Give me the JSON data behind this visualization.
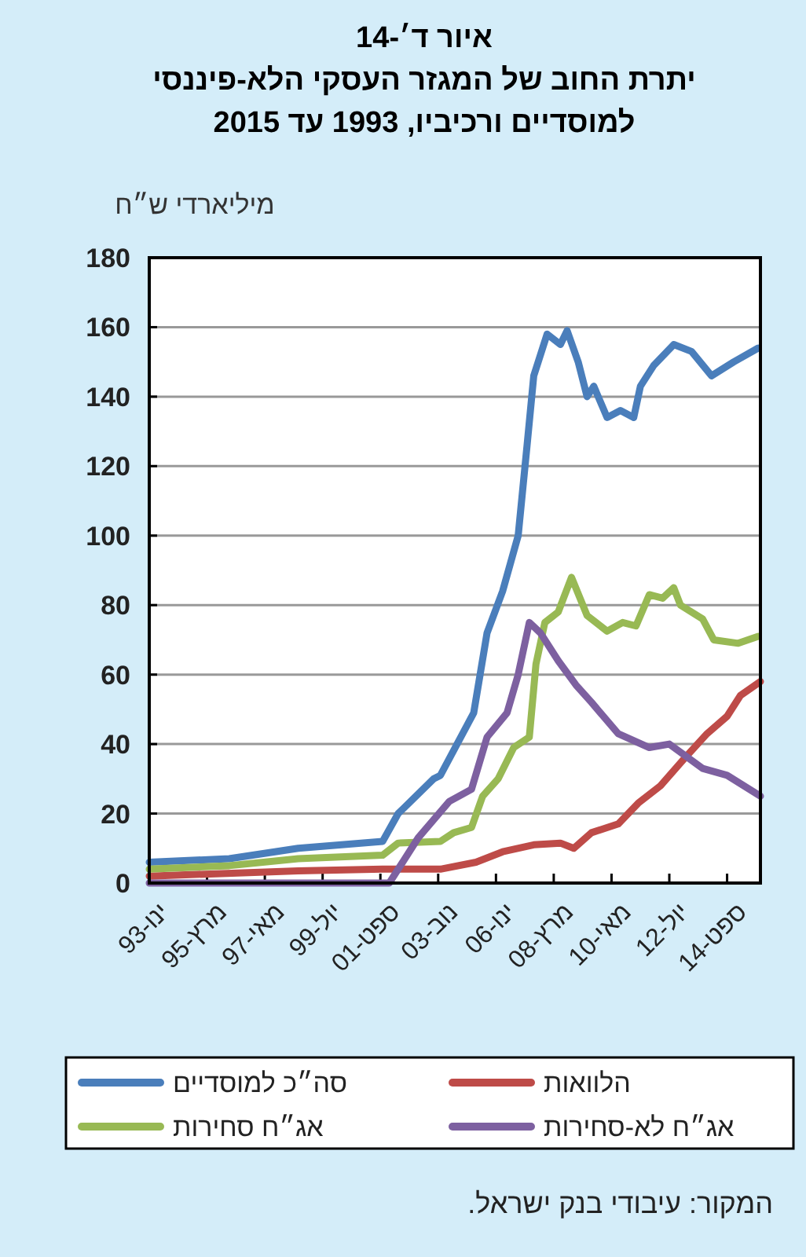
{
  "chart_data": {
    "type": "line",
    "title": "איור ד׳-14",
    "subtitle": "יתרת החוב של המגזר העסקי הלא-פיננסי\nלמוסדיים ורכיביו, 1993 עד 2015",
    "ylabel": "מיליארדי ש״ח",
    "annotations": [
      "המקור: עיבודי בנק ישראל."
    ],
    "xlim": [
      "1993-01",
      "2015-12"
    ],
    "xticks": [
      {
        "value": "1993-01",
        "label": "ינו-93"
      },
      {
        "value": "1995-03",
        "label": "מרץ-95"
      },
      {
        "value": "1997-05",
        "label": "מאי-97"
      },
      {
        "value": "1999-07",
        "label": "יול-99"
      },
      {
        "value": "2001-09",
        "label": "ספט-01"
      },
      {
        "value": "2003-11",
        "label": "נוב-03"
      },
      {
        "value": "2006-01",
        "label": "ינו-06"
      },
      {
        "value": "2008-03",
        "label": "מרץ-08"
      },
      {
        "value": "2010-05",
        "label": "מאי-10"
      },
      {
        "value": "2012-07",
        "label": "יול-12"
      },
      {
        "value": "2014-09",
        "label": "ספט-14"
      }
    ],
    "ylim": [
      0,
      180
    ],
    "yticks": [
      0,
      20,
      40,
      60,
      80,
      100,
      120,
      140,
      160,
      180
    ],
    "grid": "y",
    "legend": "bottom",
    "marker": "none",
    "line_style": "solid",
    "series": [
      {
        "name": "סה״כ למוסדיים",
        "color": "#4a7ebb",
        "x": [
          "1993-01",
          "1996-01",
          "1998-08",
          "2001-10",
          "2002-05",
          "2003-09",
          "2003-12",
          "2005-03",
          "2005-09",
          "2006-04",
          "2006-11",
          "2007-03",
          "2007-06",
          "2007-12",
          "2008-06",
          "2008-09",
          "2009-02",
          "2009-06",
          "2009-09",
          "2010-03",
          "2010-09",
          "2011-03",
          "2011-06",
          "2011-12",
          "2012-09",
          "2013-05",
          "2014-02",
          "2014-12",
          "2015-11"
        ],
        "values": [
          6,
          7,
          10,
          12,
          20,
          30,
          31,
          49,
          72,
          84,
          100,
          126,
          146,
          158,
          155,
          159,
          150,
          140,
          143,
          134,
          136,
          134,
          143,
          149,
          155,
          153,
          146,
          150,
          154
        ]
      },
      {
        "name": "הלוואות",
        "color": "#be4b48",
        "x": [
          "1993-01",
          "1998-08",
          "2001-10",
          "2003-12",
          "2005-04",
          "2006-04",
          "2007-06",
          "2008-06",
          "2008-12",
          "2009-08",
          "2010-08",
          "2011-05",
          "2012-03",
          "2013-02",
          "2013-12",
          "2014-09",
          "2015-03",
          "2015-12"
        ],
        "values": [
          2,
          3.5,
          4,
          4,
          6,
          9,
          11,
          11.5,
          10,
          14.5,
          17,
          23,
          28,
          36,
          43,
          48,
          54,
          58
        ]
      },
      {
        "name": "אג״ח סחירות",
        "color": "#98b954",
        "x": [
          "1993-01",
          "1996-01",
          "1998-08",
          "2001-10",
          "2002-05",
          "2003-12",
          "2004-06",
          "2005-02",
          "2005-07",
          "2006-02",
          "2006-09",
          "2007-04",
          "2007-07",
          "2007-11",
          "2008-05",
          "2008-11",
          "2009-06",
          "2010-03",
          "2010-10",
          "2011-04",
          "2011-10",
          "2012-04",
          "2012-09",
          "2012-12",
          "2013-10",
          "2014-03",
          "2015-02",
          "2015-11"
        ],
        "values": [
          4,
          5,
          7,
          8,
          11.5,
          12,
          14.5,
          16,
          25,
          30,
          39,
          42,
          63,
          75,
          78,
          88,
          77,
          72.5,
          75,
          74,
          83,
          82,
          85,
          80,
          76,
          70,
          69,
          71
        ]
      },
      {
        "name": "אג״ח לא-סחירות",
        "color": "#7d60a0",
        "x": [
          "1993-01",
          "2002-01",
          "2003-02",
          "2004-04",
          "2005-02",
          "2005-09",
          "2006-06",
          "2006-11",
          "2007-04",
          "2007-09",
          "2008-05",
          "2009-01",
          "2009-08",
          "2010-08",
          "2011-10",
          "2012-07",
          "2013-10",
          "2014-09",
          "2015-12"
        ],
        "values": [
          0,
          0,
          13,
          23.5,
          27,
          42,
          49,
          60,
          75,
          72,
          64,
          57,
          52,
          43,
          39,
          40,
          33,
          31,
          25
        ]
      }
    ]
  }
}
